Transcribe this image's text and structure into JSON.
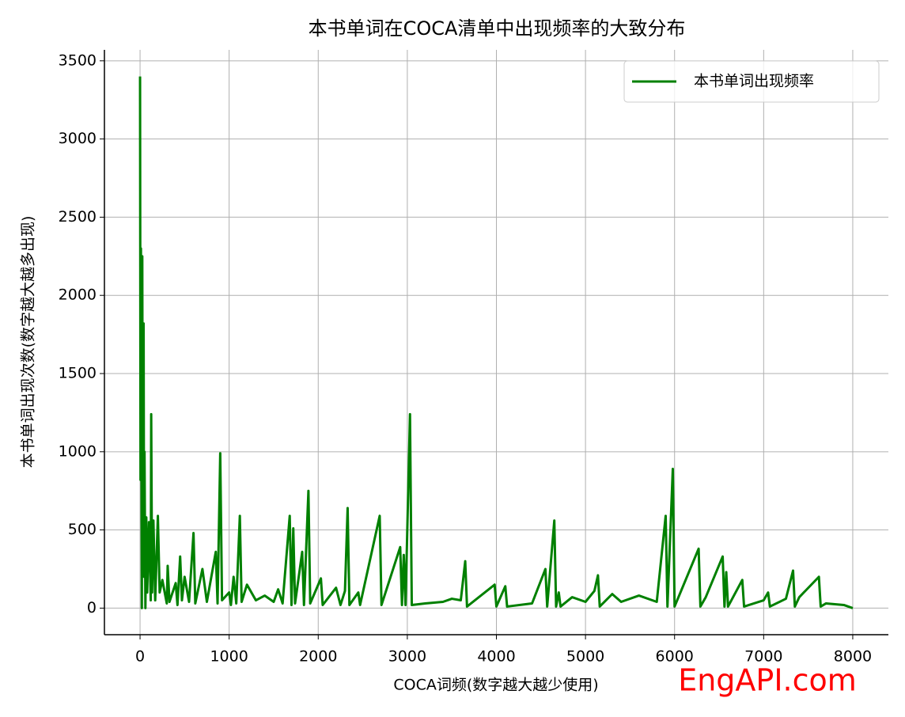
{
  "chart_data": {
    "type": "line",
    "title": "本书单词在COCA清单中出现频率的大致分布",
    "x_label": "COCA词频(数字越大越少使用)",
    "y_label": "本书单词出现次数(数字越大越多出现)",
    "watermark": "EngAPI.com",
    "x": [
      0,
      5,
      10,
      15,
      20,
      25,
      30,
      40,
      45,
      50,
      60,
      70,
      80,
      100,
      120,
      125,
      135,
      150,
      170,
      200,
      220,
      250,
      300,
      310,
      330,
      400,
      420,
      450,
      470,
      500,
      550,
      600,
      620,
      700,
      750,
      850,
      870,
      900,
      920,
      1000,
      1020,
      1050,
      1080,
      1120,
      1140,
      1200,
      1300,
      1400,
      1500,
      1550,
      1600,
      1680,
      1700,
      1720,
      1740,
      1820,
      1840,
      1890,
      1910,
      2030,
      2050,
      2200,
      2250,
      2300,
      2330,
      2350,
      2450,
      2470,
      2690,
      2710,
      2920,
      2940,
      2960,
      2980,
      3030,
      3050,
      3200,
      3400,
      3500,
      3600,
      3650,
      3670,
      3980,
      4000,
      4100,
      4120,
      4400,
      4550,
      4570,
      4650,
      4670,
      4700,
      4720,
      4850,
      5000,
      5100,
      5140,
      5160,
      5300,
      5400,
      5600,
      5800,
      5900,
      5920,
      5980,
      6000,
      6270,
      6290,
      6350,
      6540,
      6560,
      6580,
      6600,
      6760,
      6780,
      7000,
      7050,
      7070,
      7250,
      7330,
      7350,
      7400,
      7620,
      7640,
      7700,
      7900,
      8000
    ],
    "series": [
      {
        "name": "本书单词出现频率",
        "color": "#008000",
        "values": [
          3400,
          820,
          2300,
          1100,
          0,
          2250,
          500,
          1820,
          200,
          1000,
          0,
          580,
          100,
          550,
          50,
          1240,
          100,
          560,
          50,
          590,
          100,
          180,
          30,
          270,
          40,
          160,
          20,
          330,
          50,
          200,
          40,
          480,
          30,
          250,
          40,
          360,
          30,
          990,
          50,
          100,
          20,
          200,
          30,
          590,
          40,
          150,
          50,
          80,
          40,
          120,
          30,
          590,
          20,
          510,
          30,
          360,
          20,
          750,
          30,
          190,
          20,
          130,
          20,
          110,
          640,
          20,
          100,
          20,
          590,
          20,
          390,
          20,
          340,
          20,
          1240,
          20,
          30,
          40,
          60,
          50,
          300,
          10,
          150,
          10,
          140,
          10,
          30,
          250,
          10,
          560,
          10,
          100,
          10,
          70,
          40,
          110,
          210,
          10,
          90,
          40,
          80,
          40,
          590,
          10,
          890,
          10,
          380,
          10,
          70,
          330,
          10,
          230,
          10,
          180,
          10,
          50,
          100,
          10,
          60,
          240,
          10,
          70,
          200,
          10,
          30,
          20,
          0
        ]
      }
    ],
    "xlim": [
      -400,
      8400
    ],
    "ylim": [
      -170,
      3570
    ],
    "xticks": [
      0,
      1000,
      2000,
      3000,
      4000,
      5000,
      6000,
      7000,
      8000
    ],
    "yticks": [
      0,
      500,
      1000,
      1500,
      2000,
      2500,
      3000,
      3500
    ],
    "grid": true,
    "legend": "upper right"
  }
}
